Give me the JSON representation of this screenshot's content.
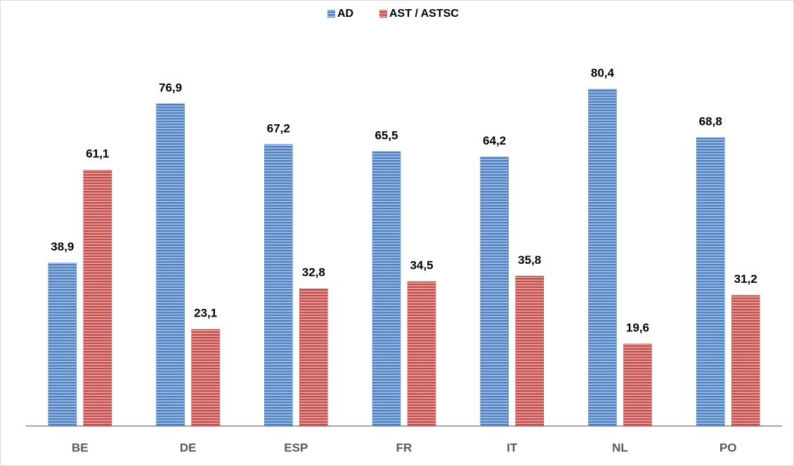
{
  "chart_data": {
    "type": "bar",
    "categories": [
      "BE",
      "DE",
      "ESP",
      "FR",
      "IT",
      "NL",
      "PO"
    ],
    "series": [
      {
        "name": "AD",
        "color": "#4f81bd",
        "values": [
          38.9,
          76.9,
          67.2,
          65.5,
          64.2,
          80.4,
          68.8
        ],
        "value_labels": [
          "38,9",
          "76,9",
          "67,2",
          "65,5",
          "64,2",
          "80,4",
          "68,8"
        ]
      },
      {
        "name": "AST / ASTSC",
        "color": "#c0504d",
        "values": [
          61.1,
          23.1,
          32.8,
          34.5,
          35.8,
          19.6,
          31.2
        ],
        "value_labels": [
          "61,1",
          "23,1",
          "32,8",
          "34,5",
          "35,8",
          "19,6",
          "31,2"
        ]
      }
    ],
    "legend": "top"
  }
}
